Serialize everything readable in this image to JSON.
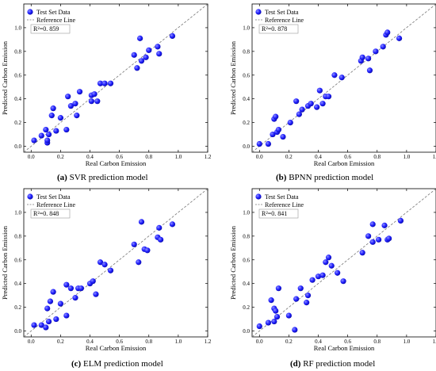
{
  "colors": {
    "point": "#1f1fff",
    "point_dark": "#0a0aa8",
    "point_light": "#8f8fff",
    "reference_line": "#777777",
    "axis": "#000000"
  },
  "chart_data": [
    {
      "type": "scatter",
      "panel_letter": "(a)",
      "caption": " SVR prediction model",
      "xlabel": "Real Carbon Emission",
      "ylabel": "Predicted Carbon Emission",
      "xlim": [
        -0.05,
        1.2
      ],
      "ylim": [
        -0.05,
        1.2
      ],
      "xticks": [
        "0.0",
        "0.2",
        "0.4",
        "0.6",
        "0.8",
        "1.0",
        "1.2"
      ],
      "yticks": [
        "0.0",
        "0.2",
        "0.4",
        "0.6",
        "0.8",
        "1.0"
      ],
      "legend": {
        "position": "top-left",
        "entries": [
          "Test Set Data",
          "Reference Line"
        ]
      },
      "r2_label": "R²=0. 859",
      "grid": false,
      "points": [
        [
          0.02,
          0.05
        ],
        [
          0.07,
          0.09
        ],
        [
          0.1,
          0.14
        ],
        [
          0.11,
          0.03
        ],
        [
          0.12,
          0.1
        ],
        [
          0.14,
          0.26
        ],
        [
          0.15,
          0.32
        ],
        [
          0.11,
          0.05
        ],
        [
          0.17,
          0.13
        ],
        [
          0.2,
          0.24
        ],
        [
          0.24,
          0.14
        ],
        [
          0.25,
          0.42
        ],
        [
          0.27,
          0.34
        ],
        [
          0.3,
          0.36
        ],
        [
          0.31,
          0.26
        ],
        [
          0.33,
          0.46
        ],
        [
          0.41,
          0.43
        ],
        [
          0.41,
          0.38
        ],
        [
          0.43,
          0.44
        ],
        [
          0.45,
          0.38
        ],
        [
          0.47,
          0.53
        ],
        [
          0.5,
          0.53
        ],
        [
          0.54,
          0.53
        ],
        [
          0.7,
          0.77
        ],
        [
          0.72,
          0.66
        ],
        [
          0.74,
          0.91
        ],
        [
          0.75,
          0.72
        ],
        [
          0.78,
          0.75
        ],
        [
          0.8,
          0.81
        ],
        [
          0.86,
          0.84
        ],
        [
          0.87,
          0.78
        ],
        [
          0.96,
          0.93
        ]
      ]
    },
    {
      "type": "scatter",
      "panel_letter": "(b)",
      "caption": " BPNN prediction model",
      "xlabel": "Real Carbon Emission",
      "ylabel": "Predicted Carbon Emission",
      "xlim": [
        -0.05,
        1.2
      ],
      "ylim": [
        -0.05,
        1.2
      ],
      "xticks": [
        "0.0",
        "0.2",
        "0.4",
        "0.6",
        "0.8",
        "1.0",
        "1.2"
      ],
      "yticks": [
        "0.0",
        "0.2",
        "0.4",
        "0.6",
        "0.8",
        "1.0"
      ],
      "legend": {
        "position": "top-left",
        "entries": [
          "Test Set Data",
          "Reference Line"
        ]
      },
      "r2_label": "R²=0. 878",
      "grid": false,
      "points": [
        [
          0.0,
          0.02
        ],
        [
          0.06,
          0.02
        ],
        [
          0.09,
          0.1
        ],
        [
          0.1,
          0.23
        ],
        [
          0.11,
          0.25
        ],
        [
          0.12,
          0.12
        ],
        [
          0.13,
          0.14
        ],
        [
          0.16,
          0.08
        ],
        [
          0.21,
          0.2
        ],
        [
          0.25,
          0.38
        ],
        [
          0.27,
          0.27
        ],
        [
          0.29,
          0.31
        ],
        [
          0.33,
          0.34
        ],
        [
          0.35,
          0.36
        ],
        [
          0.39,
          0.33
        ],
        [
          0.41,
          0.47
        ],
        [
          0.43,
          0.36
        ],
        [
          0.45,
          0.42
        ],
        [
          0.47,
          0.42
        ],
        [
          0.51,
          0.6
        ],
        [
          0.56,
          0.58
        ],
        [
          0.69,
          0.72
        ],
        [
          0.7,
          0.75
        ],
        [
          0.74,
          0.74
        ],
        [
          0.75,
          0.64
        ],
        [
          0.79,
          0.8
        ],
        [
          0.84,
          0.84
        ],
        [
          0.86,
          0.94
        ],
        [
          0.87,
          0.96
        ],
        [
          0.95,
          0.91
        ]
      ]
    },
    {
      "type": "scatter",
      "panel_letter": "(c)",
      "caption": " ELM prediction model",
      "xlabel": "Real Carbon Emission",
      "ylabel": "Predicted Carbon Emission",
      "xlim": [
        -0.05,
        1.2
      ],
      "ylim": [
        -0.05,
        1.2
      ],
      "xticks": [
        "0.0",
        "0.2",
        "0.4",
        "0.6",
        "0.8",
        "1.0",
        "1.2"
      ],
      "yticks": [
        "0.0",
        "0.2",
        "0.4",
        "0.6",
        "0.8",
        "1.0"
      ],
      "legend": {
        "position": "top-left",
        "entries": [
          "Test Set Data",
          "Reference Line"
        ]
      },
      "r2_label": "R²=0. 848",
      "grid": false,
      "points": [
        [
          0.02,
          0.05
        ],
        [
          0.07,
          0.05
        ],
        [
          0.1,
          0.03
        ],
        [
          0.11,
          0.19
        ],
        [
          0.12,
          0.08
        ],
        [
          0.13,
          0.25
        ],
        [
          0.15,
          0.33
        ],
        [
          0.17,
          0.1
        ],
        [
          0.2,
          0.23
        ],
        [
          0.24,
          0.13
        ],
        [
          0.24,
          0.39
        ],
        [
          0.27,
          0.36
        ],
        [
          0.3,
          0.28
        ],
        [
          0.32,
          0.36
        ],
        [
          0.34,
          0.36
        ],
        [
          0.4,
          0.4
        ],
        [
          0.42,
          0.42
        ],
        [
          0.44,
          0.31
        ],
        [
          0.47,
          0.58
        ],
        [
          0.5,
          0.56
        ],
        [
          0.54,
          0.51
        ],
        [
          0.7,
          0.73
        ],
        [
          0.73,
          0.58
        ],
        [
          0.75,
          0.92
        ],
        [
          0.77,
          0.69
        ],
        [
          0.79,
          0.68
        ],
        [
          0.86,
          0.79
        ],
        [
          0.87,
          0.87
        ],
        [
          0.88,
          0.77
        ],
        [
          0.96,
          0.9
        ]
      ]
    },
    {
      "type": "scatter",
      "panel_letter": "(d)",
      "caption": " RF prediction model",
      "xlabel": "Real Carbon Emission",
      "ylabel": "Predicted Carbon Emission",
      "xlim": [
        -0.05,
        1.2
      ],
      "ylim": [
        -0.05,
        1.2
      ],
      "xticks": [
        "0.0",
        "0.2",
        "0.4",
        "0.6",
        "0.8",
        "1.0",
        "1.2"
      ],
      "yticks": [
        "0.0",
        "0.2",
        "0.4",
        "0.6",
        "0.8",
        "1.0"
      ],
      "legend": {
        "position": "top-left",
        "entries": [
          "Test Set Data",
          "Reference Line"
        ]
      },
      "r2_label": "R²=0. 841",
      "grid": false,
      "points": [
        [
          0.0,
          0.04
        ],
        [
          0.06,
          0.07
        ],
        [
          0.08,
          0.26
        ],
        [
          0.1,
          0.19
        ],
        [
          0.1,
          0.08
        ],
        [
          0.11,
          0.17
        ],
        [
          0.12,
          0.12
        ],
        [
          0.13,
          0.36
        ],
        [
          0.2,
          0.13
        ],
        [
          0.24,
          0.01
        ],
        [
          0.25,
          0.27
        ],
        [
          0.28,
          0.36
        ],
        [
          0.32,
          0.24
        ],
        [
          0.33,
          0.3
        ],
        [
          0.36,
          0.43
        ],
        [
          0.4,
          0.46
        ],
        [
          0.43,
          0.47
        ],
        [
          0.45,
          0.58
        ],
        [
          0.47,
          0.62
        ],
        [
          0.49,
          0.55
        ],
        [
          0.53,
          0.49
        ],
        [
          0.57,
          0.42
        ],
        [
          0.7,
          0.66
        ],
        [
          0.74,
          0.8
        ],
        [
          0.77,
          0.9
        ],
        [
          0.77,
          0.75
        ],
        [
          0.81,
          0.77
        ],
        [
          0.85,
          0.89
        ],
        [
          0.87,
          0.77
        ],
        [
          0.88,
          0.78
        ],
        [
          0.96,
          0.93
        ]
      ]
    }
  ]
}
